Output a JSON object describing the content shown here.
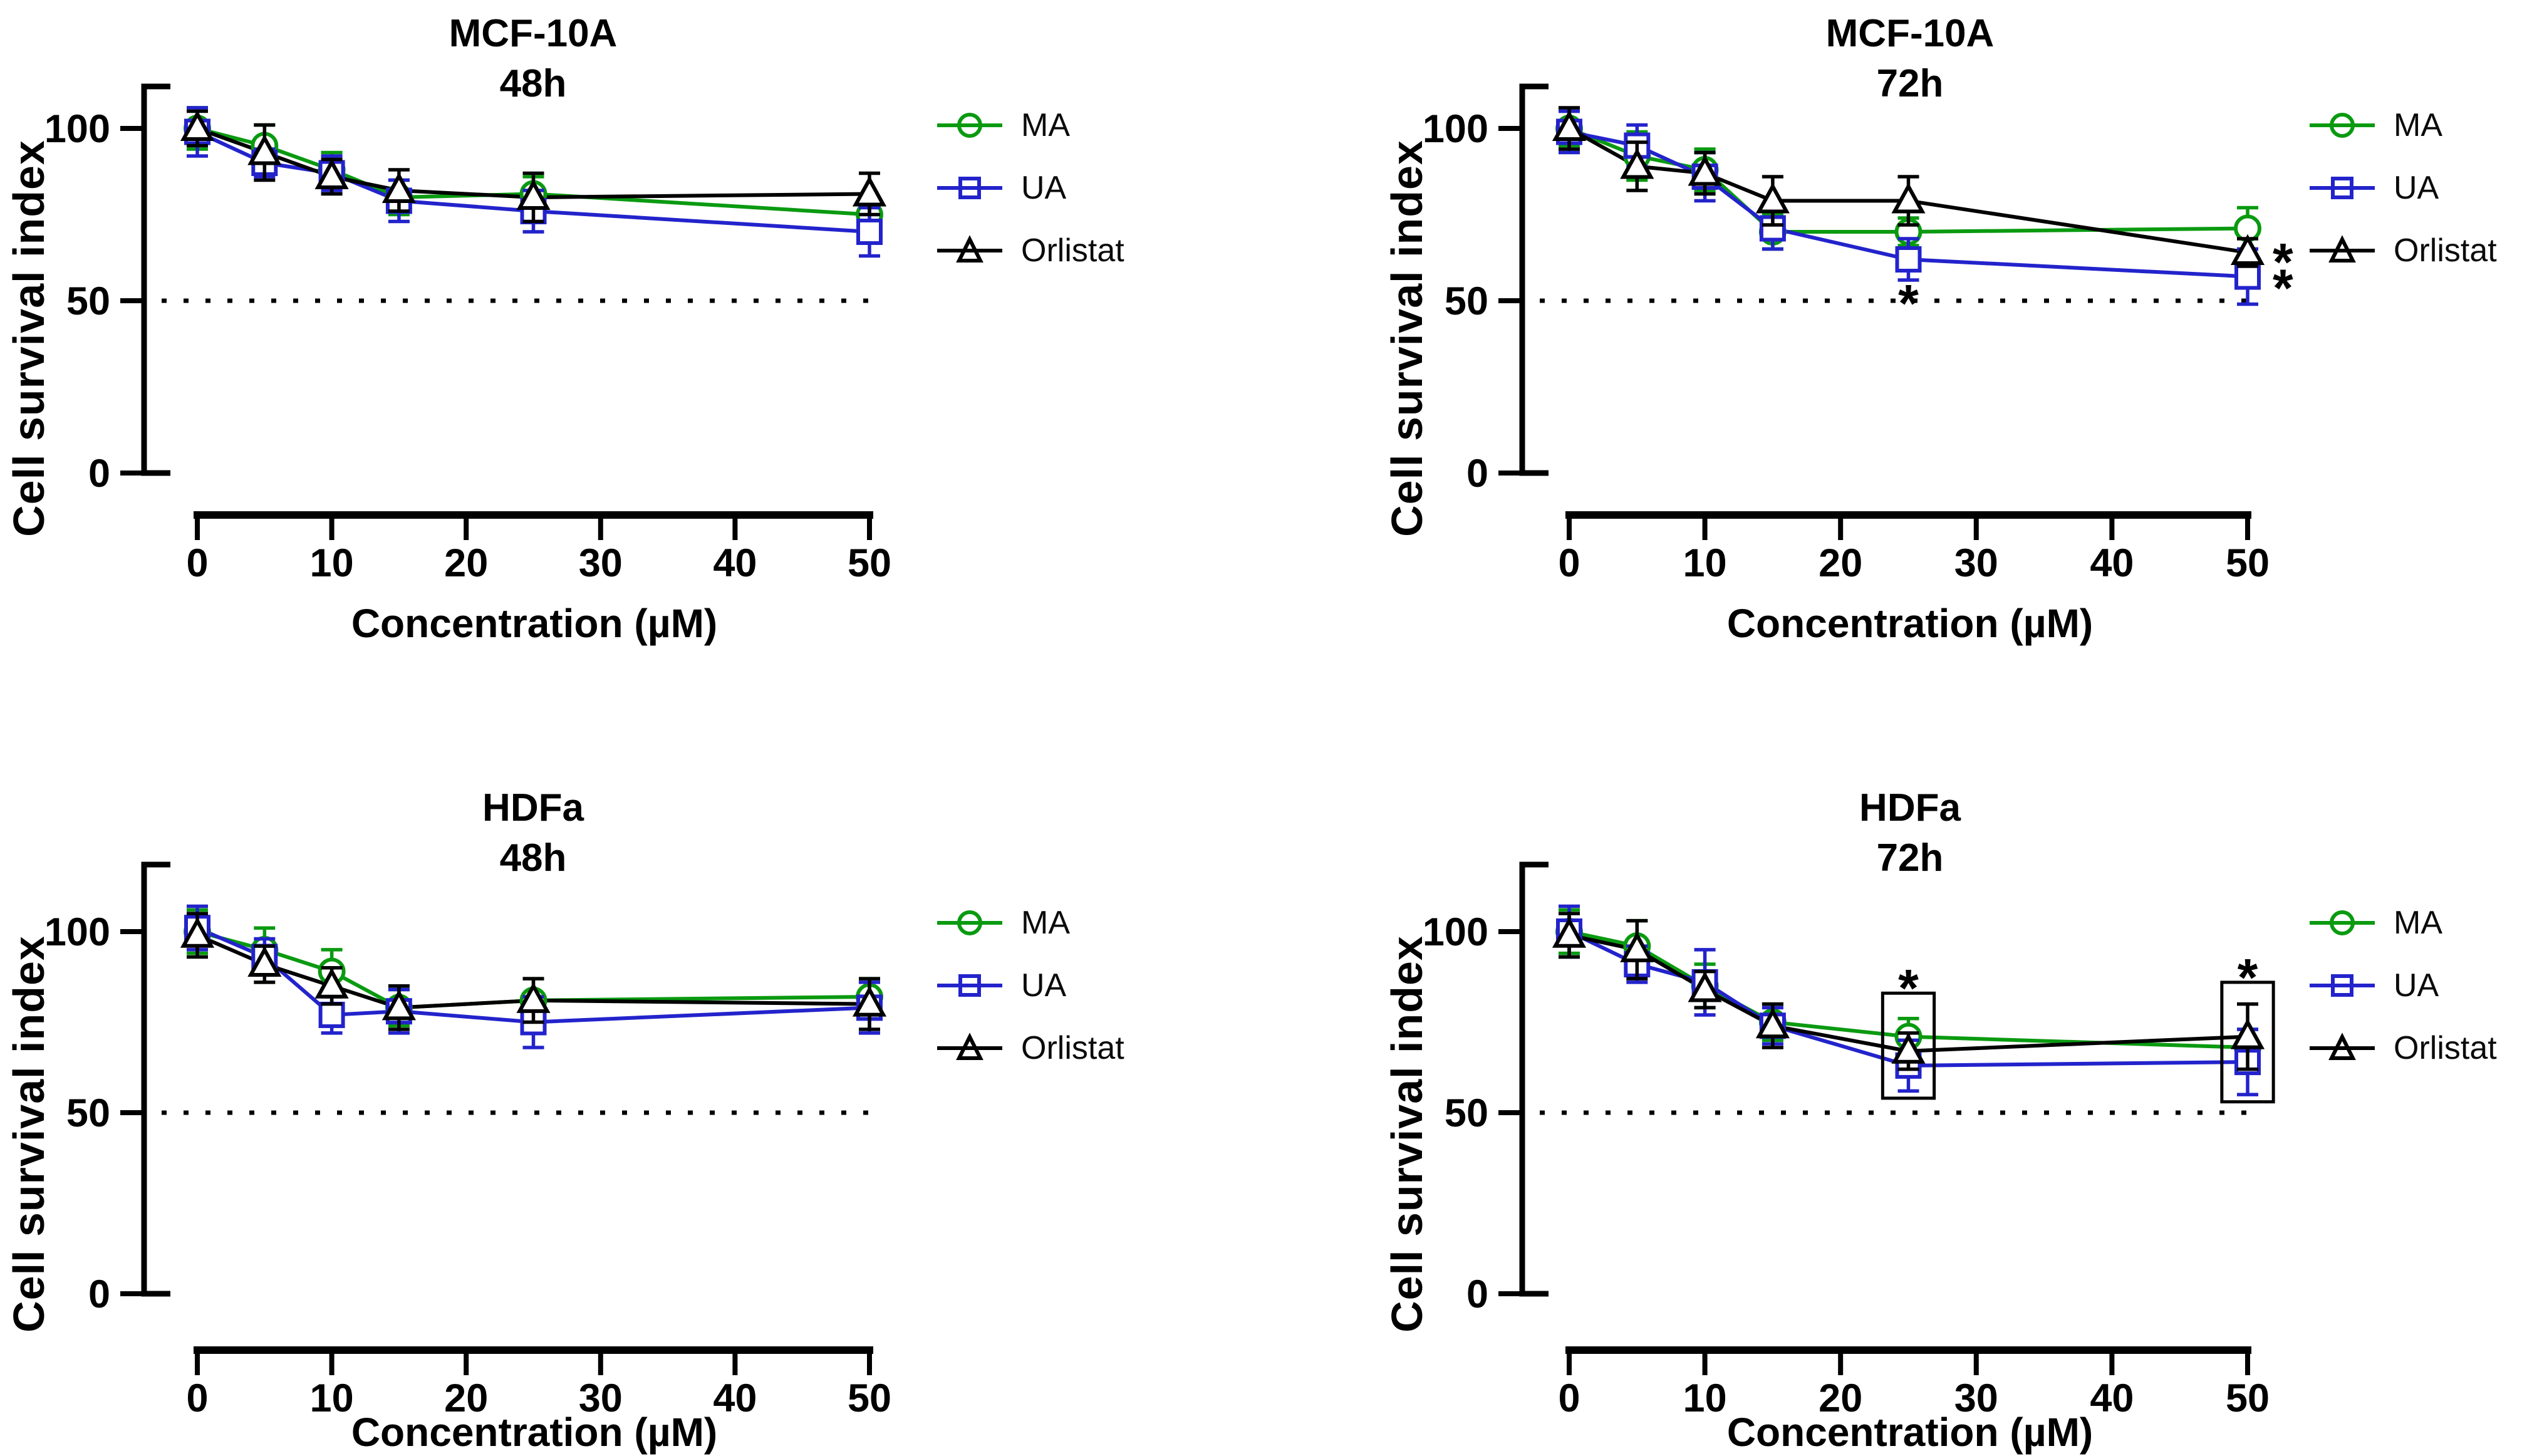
{
  "figure": {
    "y_axis_label": "Cell survival index",
    "x_axis_label": "Concentration (µM)",
    "y_ticks": [
      0,
      50,
      100
    ],
    "x_ticks": [
      0,
      10,
      20,
      30,
      40,
      50
    ],
    "x_range": [
      0,
      50
    ],
    "y_range": [
      0,
      112
    ],
    "dotted_line_y": 50,
    "significance_marker": "*",
    "axis_color": "#000000",
    "legend": [
      {
        "name": "MA",
        "marker": "circle",
        "color": "#0a9a10"
      },
      {
        "name": "UA",
        "marker": "square",
        "color": "#2323cc"
      },
      {
        "name": "Orlistat",
        "marker": "triangle",
        "color": "#000000"
      }
    ]
  },
  "chart_data": [
    {
      "type": "line",
      "title": "MCF-10A",
      "subtitle": "48h",
      "xlabel": "Concentration (µM)",
      "ylabel": "Cell survival index",
      "x": [
        0,
        5,
        10,
        15,
        25,
        50
      ],
      "ylim": [
        0,
        112
      ],
      "grid": false,
      "legend_position": "right",
      "series": [
        {
          "name": "MA",
          "marker": "circle",
          "color": "#0a9a10",
          "values": [
            100,
            95,
            88,
            80,
            81,
            75
          ],
          "errors": [
            6,
            6,
            5,
            5,
            5,
            5
          ]
        },
        {
          "name": "UA",
          "marker": "square",
          "color": "#2323cc",
          "values": [
            99,
            90,
            87,
            79,
            76,
            70
          ],
          "errors": [
            7,
            4,
            5,
            6,
            6,
            7
          ]
        },
        {
          "name": "Orlistat",
          "marker": "triangle",
          "color": "#000000",
          "values": [
            100,
            93,
            86,
            82,
            80,
            81
          ],
          "errors": [
            5,
            8,
            5,
            6,
            7,
            6
          ]
        }
      ],
      "annotations": []
    },
    {
      "type": "line",
      "title": "MCF-10A",
      "subtitle": "72h",
      "xlabel": "Concentration (µM)",
      "ylabel": "Cell survival index",
      "x": [
        0,
        5,
        10,
        15,
        25,
        50
      ],
      "ylim": [
        0,
        112
      ],
      "grid": false,
      "legend_position": "right",
      "series": [
        {
          "name": "MA",
          "marker": "circle",
          "color": "#0a9a10",
          "values": [
            100,
            92,
            88,
            70,
            70,
            71
          ],
          "errors": [
            5,
            7,
            6,
            5,
            4,
            6
          ]
        },
        {
          "name": "UA",
          "marker": "square",
          "color": "#2323cc",
          "values": [
            99,
            95,
            86,
            71,
            62,
            57
          ],
          "errors": [
            6,
            6,
            7,
            6,
            6,
            8
          ]
        },
        {
          "name": "Orlistat",
          "marker": "triangle",
          "color": "#000000",
          "values": [
            100,
            89,
            87,
            79,
            79,
            64
          ],
          "errors": [
            6,
            7,
            6,
            7,
            7,
            4
          ]
        }
      ],
      "annotations": [
        {
          "type": "asterisk",
          "x": 25,
          "y": 52
        },
        {
          "type": "asterisk",
          "x": 52.6,
          "y": 64
        },
        {
          "type": "asterisk",
          "x": 52.6,
          "y": 56.5
        }
      ]
    },
    {
      "type": "line",
      "title": "HDFa",
      "subtitle": "48h",
      "xlabel": "Concentration (µM)",
      "ylabel": "Cell survival index",
      "x": [
        0,
        5,
        10,
        15,
        25,
        50
      ],
      "ylim": [
        0,
        112
      ],
      "grid": false,
      "legend_position": "right",
      "series": [
        {
          "name": "MA",
          "marker": "circle",
          "color": "#0a9a10",
          "values": [
            100,
            95,
            89,
            79,
            81,
            82
          ],
          "errors": [
            6,
            6,
            6,
            5,
            6,
            5
          ]
        },
        {
          "name": "UA",
          "marker": "square",
          "color": "#2323cc",
          "values": [
            101,
            93,
            77,
            78,
            75,
            79
          ],
          "errors": [
            6,
            5,
            5,
            6,
            7,
            7
          ]
        },
        {
          "name": "Orlistat",
          "marker": "triangle",
          "color": "#000000",
          "values": [
            99,
            91,
            85,
            79,
            81,
            80
          ],
          "errors": [
            6,
            5,
            5,
            6,
            6,
            7
          ]
        }
      ],
      "annotations": []
    },
    {
      "type": "line",
      "title": "HDFa",
      "subtitle": "72h",
      "xlabel": "Concentration (µM)",
      "ylabel": "Cell survival index",
      "x": [
        0,
        5,
        10,
        15,
        25,
        50
      ],
      "ylim": [
        0,
        112
      ],
      "grid": false,
      "legend_position": "right",
      "series": [
        {
          "name": "MA",
          "marker": "circle",
          "color": "#0a9a10",
          "values": [
            100,
            96,
            85,
            75,
            71,
            68
          ],
          "errors": [
            6,
            7,
            6,
            5,
            5,
            5
          ]
        },
        {
          "name": "UA",
          "marker": "square",
          "color": "#2323cc",
          "values": [
            100,
            91,
            86,
            74,
            63,
            64
          ],
          "errors": [
            7,
            5,
            9,
            5,
            7,
            9
          ]
        },
        {
          "name": "Orlistat",
          "marker": "triangle",
          "color": "#000000",
          "values": [
            99,
            95,
            84,
            74,
            67,
            71
          ],
          "errors": [
            6,
            8,
            5,
            6,
            5,
            9
          ]
        }
      ],
      "annotations": [
        {
          "type": "box",
          "x": 25,
          "half_width_um": 1.9,
          "y_min": 54,
          "y_max": 83,
          "asterisk_y": 87
        },
        {
          "type": "box",
          "x": 50,
          "half_width_um": 1.9,
          "y_min": 53,
          "y_max": 86,
          "asterisk_y": 90
        }
      ]
    }
  ]
}
